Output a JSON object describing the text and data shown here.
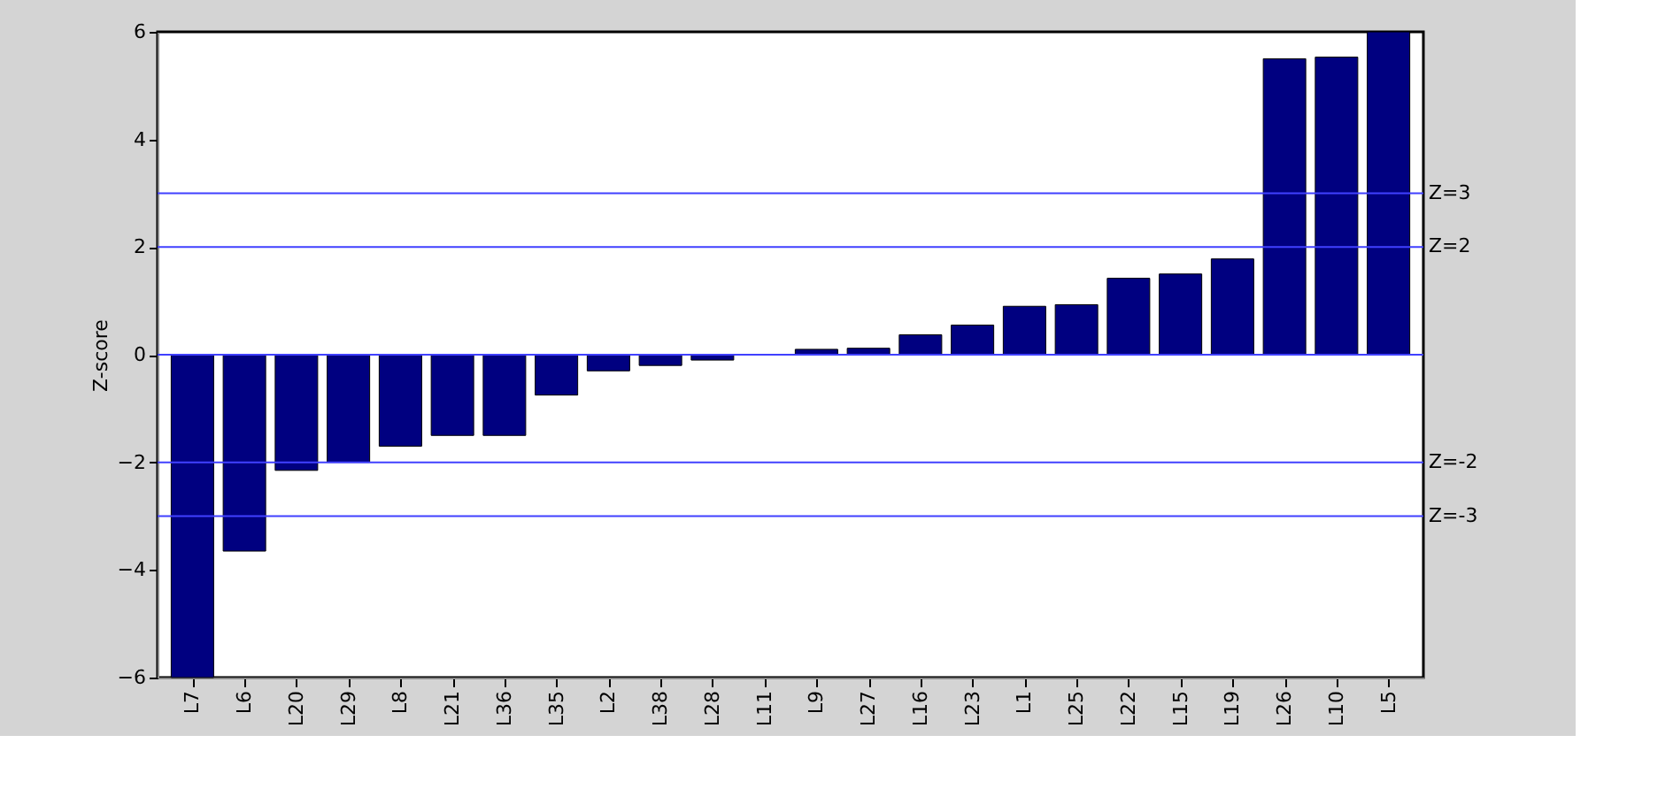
{
  "chart_data": {
    "type": "bar",
    "ylabel": "Z-score",
    "categories": [
      "L7",
      "L6",
      "L20",
      "L29",
      "L8",
      "L21",
      "L36",
      "L35",
      "L2",
      "L38",
      "L28",
      "L11",
      "L9",
      "L27",
      "L16",
      "L23",
      "L1",
      "L25",
      "L22",
      "L15",
      "L19",
      "L26",
      "L10",
      "L5"
    ],
    "values": [
      -6,
      -3.65,
      -2.15,
      -2.0,
      -1.7,
      -1.5,
      -1.5,
      -0.75,
      -0.3,
      -0.2,
      -0.1,
      null,
      0.1,
      0.12,
      0.37,
      0.55,
      0.9,
      0.93,
      1.42,
      1.5,
      1.78,
      5.5,
      5.53,
      6
    ],
    "color": "#000080",
    "ylim": [
      -6,
      6
    ],
    "yticks": [
      -6,
      -4,
      -2,
      0,
      2,
      4,
      6
    ],
    "grid": false,
    "ref_lines": [
      {
        "axis": "y",
        "value": 3,
        "label": "Z=3",
        "color": "#4040ff"
      },
      {
        "axis": "y",
        "value": 2,
        "label": "Z=2",
        "color": "#4040ff"
      },
      {
        "axis": "y",
        "value": 0,
        "label": null,
        "color": "#4040ff"
      },
      {
        "axis": "y",
        "value": -2,
        "label": "Z=-2",
        "color": "#4040ff"
      },
      {
        "axis": "y",
        "value": -3,
        "label": "Z=-3",
        "color": "#4040ff"
      }
    ]
  }
}
